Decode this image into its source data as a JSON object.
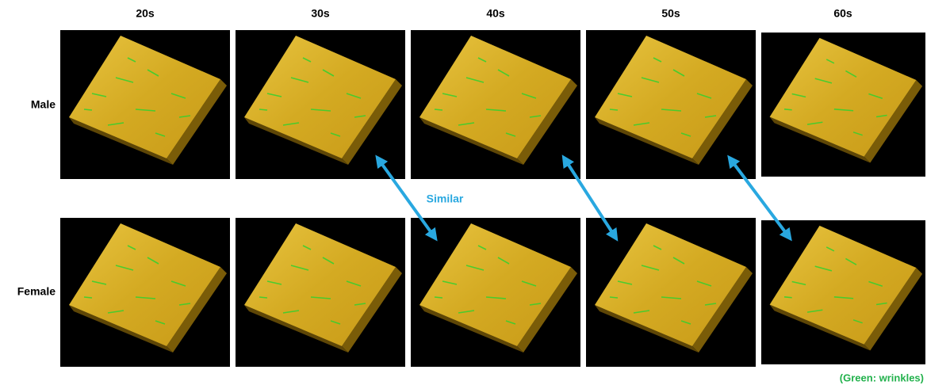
{
  "columns": [
    "20s",
    "30s",
    "40s",
    "50s",
    "60s"
  ],
  "rows": [
    "Male",
    "Female"
  ],
  "annotation": "Similar",
  "legend_note": "(Green: wrinkles)"
}
